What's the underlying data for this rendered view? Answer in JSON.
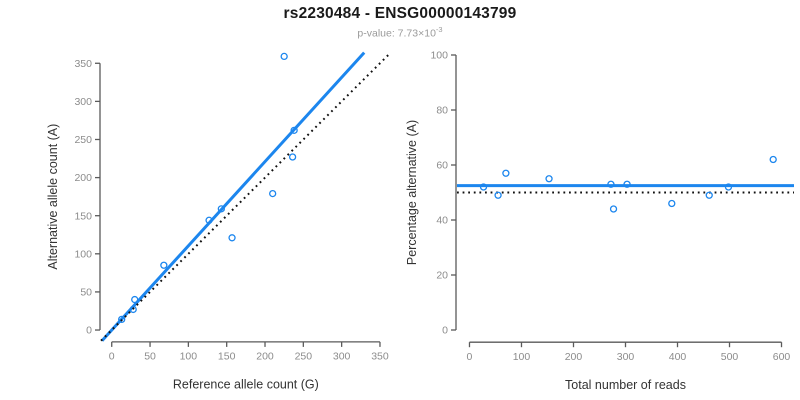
{
  "title": "rs2230484 - ENSG00000143799",
  "subtitle": {
    "prefix": "p-value: 7.73×10",
    "exponent": "-3"
  },
  "colors": {
    "accent_blue": "#1C86EE",
    "reference_black": "#111111",
    "axis_line": "#5a5a5a",
    "tick_label": "#8c8c8c",
    "axis_title": "#333333",
    "subtitle_gray": "#9b9b9b"
  },
  "chart_data": [
    {
      "type": "scatter",
      "panel": "left",
      "title": "",
      "xlabel": "Reference allele count (G)",
      "ylabel": "Alternative allele count (A)",
      "xlim": [
        0,
        350
      ],
      "ylim": [
        0,
        350
      ],
      "xticks": [
        0,
        50,
        100,
        150,
        200,
        250,
        300,
        350
      ],
      "yticks": [
        0,
        50,
        100,
        150,
        200,
        250,
        300,
        350
      ],
      "grid": false,
      "legend": "none",
      "points": [
        [
          13,
          14
        ],
        [
          28,
          27
        ],
        [
          30,
          40
        ],
        [
          68,
          85
        ],
        [
          127,
          144
        ],
        [
          143,
          159
        ],
        [
          157,
          121
        ],
        [
          210,
          179
        ],
        [
          236,
          227
        ],
        [
          238,
          262
        ],
        [
          225,
          359
        ]
      ],
      "lines": [
        {
          "name": "fitted-ratio-line",
          "slope": 1.105,
          "intercept": 0,
          "style": "solid",
          "color": "#1C86EE",
          "width": 3
        },
        {
          "name": "identity-reference-line",
          "slope": 1,
          "intercept": 0,
          "style": "dotted",
          "color": "#111111",
          "width": 2
        }
      ]
    },
    {
      "type": "scatter",
      "panel": "right",
      "title": "",
      "xlabel": "Total number of reads",
      "ylabel": "Percentage alternative (A)",
      "xlim": [
        0,
        600
      ],
      "ylim": [
        0,
        100
      ],
      "xticks": [
        0,
        100,
        200,
        300,
        400,
        500,
        600
      ],
      "yticks": [
        0,
        20,
        40,
        60,
        80,
        100
      ],
      "grid": false,
      "legend": "none",
      "points": [
        [
          27,
          52
        ],
        [
          55,
          49
        ],
        [
          70,
          57
        ],
        [
          153,
          55
        ],
        [
          272,
          53
        ],
        [
          277,
          44
        ],
        [
          303,
          53
        ],
        [
          389,
          46
        ],
        [
          461,
          49
        ],
        [
          498,
          52
        ],
        [
          584,
          62
        ]
      ],
      "lines": [
        {
          "name": "fitted-percentage-line",
          "slope": 0,
          "intercept": 52.5,
          "style": "solid",
          "color": "#1C86EE",
          "width": 3
        },
        {
          "name": "reference-50pct-line",
          "slope": 0,
          "intercept": 50,
          "style": "dotted",
          "color": "#111111",
          "width": 2
        }
      ]
    }
  ]
}
